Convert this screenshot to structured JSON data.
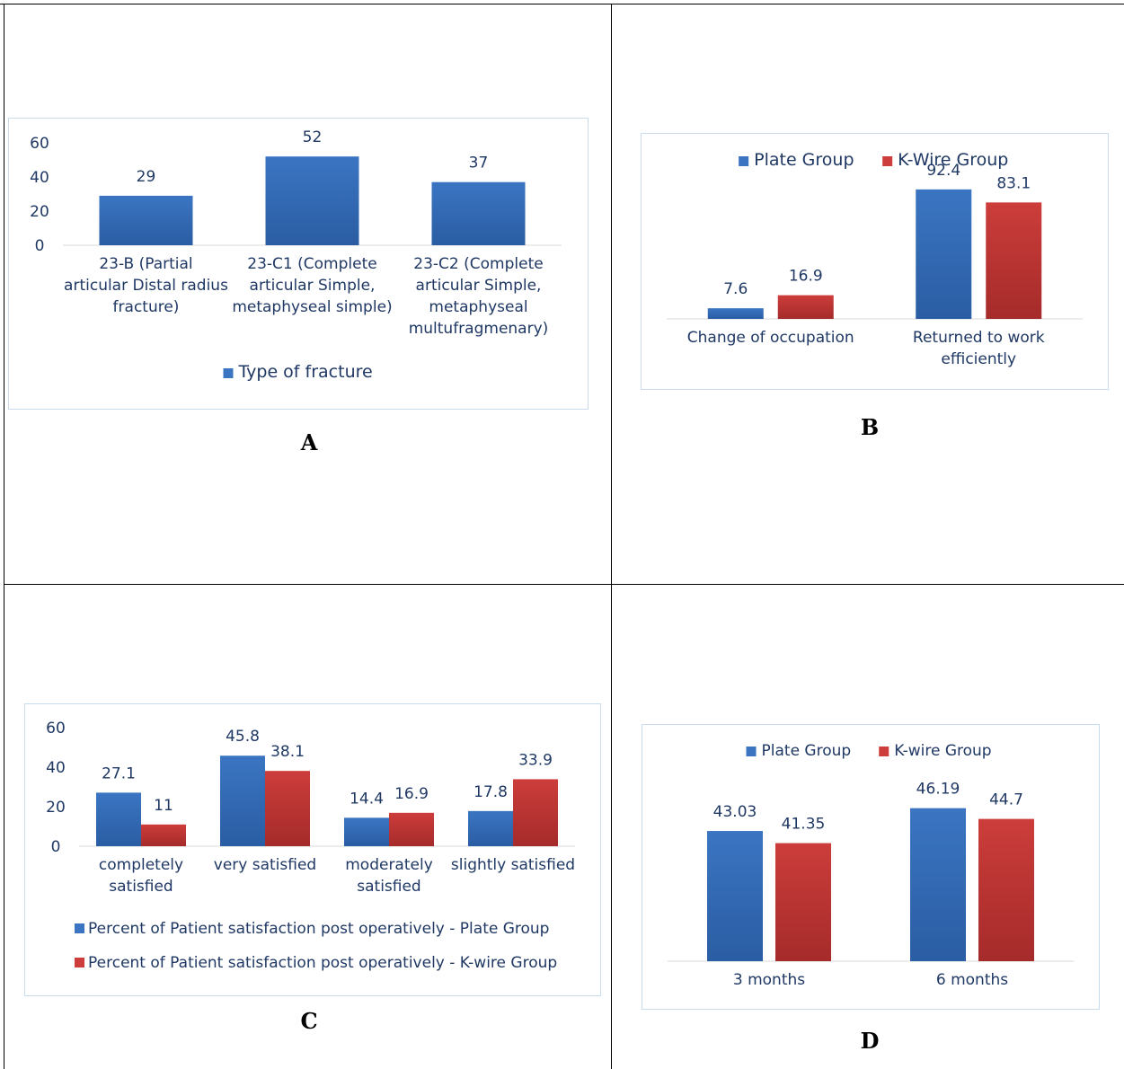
{
  "colors": {
    "plate": "#3b75c2",
    "plate_dark": "#2a5da3",
    "kwire": "#cc3d3b",
    "kwire_dark": "#a52b2a",
    "text": "#1f3864",
    "axis": "#d9d9d9",
    "frame": "#c9dcef"
  },
  "panels": {
    "a_label": "A",
    "b_label": "B",
    "c_label": "C",
    "d_label": "D"
  },
  "chart_data": [
    {
      "id": "A",
      "type": "bar",
      "categories": [
        [
          "23-B  (Partial",
          "articular Distal radius",
          "fracture)"
        ],
        [
          "23-C1  (Complete",
          "articular Simple,",
          "metaphyseal simple)"
        ],
        [
          "23-C2  (Complete",
          "articular Simple,",
          "metaphyseal",
          "multufragmenary)"
        ]
      ],
      "series": [
        {
          "name": "Type of fracture",
          "values": [
            29,
            52,
            37
          ],
          "color": "#3b75c2"
        }
      ],
      "yticks": [
        0,
        20,
        40,
        60
      ],
      "ylim": [
        0,
        60
      ],
      "legend": "bottom",
      "grid": false
    },
    {
      "id": "B",
      "type": "bar",
      "categories": [
        [
          "Change of occupation"
        ],
        [
          "Returned to work",
          "efficiently"
        ]
      ],
      "series": [
        {
          "name": "Plate Group",
          "values": [
            7.6,
            92.4
          ],
          "color": "#3b75c2"
        },
        {
          "name": "K-Wire Group",
          "values": [
            16.9,
            83.1
          ],
          "color": "#cc3d3b"
        }
      ],
      "ylim": [
        0,
        100
      ],
      "legend": "top",
      "grid": false
    },
    {
      "id": "C",
      "type": "bar",
      "categories": [
        [
          "completely",
          "satisfied"
        ],
        [
          "very satisfied"
        ],
        [
          "moderately",
          "satisfied"
        ],
        [
          "slightly satisfied"
        ]
      ],
      "series": [
        {
          "name": "Percent of Patient satisfaction post operatively - Plate Group",
          "values": [
            27.1,
            45.8,
            14.4,
            17.8
          ],
          "color": "#3b75c2"
        },
        {
          "name": "Percent of Patient satisfaction post operatively - K-wire Group",
          "values": [
            11,
            38.1,
            16.9,
            33.9
          ],
          "color": "#cc3d3b"
        }
      ],
      "yticks": [
        0,
        20,
        40,
        60
      ],
      "ylim": [
        0,
        60
      ],
      "legend": "bottom",
      "grid": false
    },
    {
      "id": "D",
      "type": "bar",
      "categories": [
        [
          "3 months"
        ],
        [
          "6 months"
        ]
      ],
      "series": [
        {
          "name": "Plate Group",
          "values": [
            43.03,
            46.19
          ],
          "color": "#3b75c2"
        },
        {
          "name": "K-wire Group",
          "values": [
            41.35,
            44.7
          ],
          "color": "#cc3d3b"
        }
      ],
      "ylim": [
        25,
        50
      ],
      "legend": "top",
      "grid": false
    }
  ]
}
